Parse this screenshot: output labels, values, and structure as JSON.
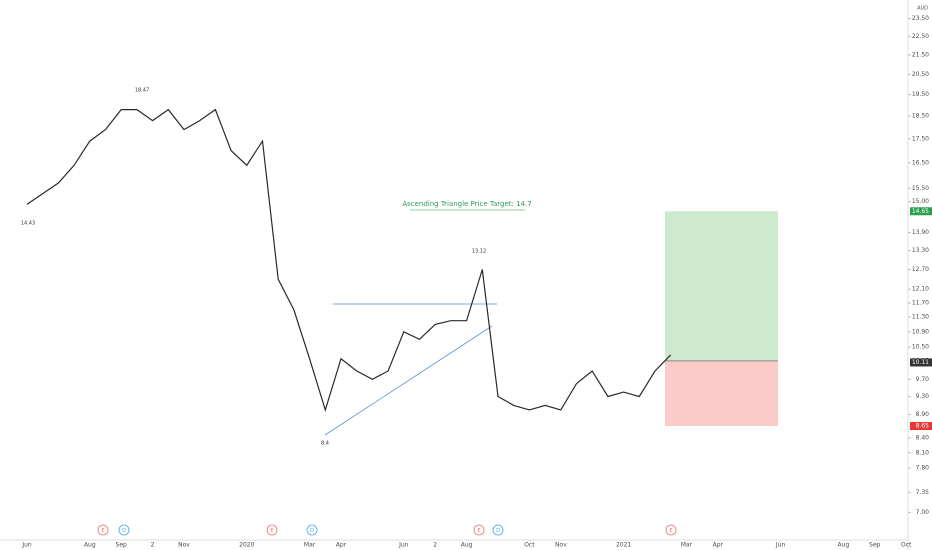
{
  "chart_data": {
    "type": "line",
    "currency": "AUD",
    "log_scale": true,
    "series": [
      {
        "name": "Price",
        "color": "#2a2a2a",
        "values": [
          14.9,
          15.3,
          15.7,
          16.4,
          17.4,
          17.9,
          18.8,
          18.8,
          18.3,
          18.8,
          17.9,
          18.3,
          18.8,
          17.0,
          16.4,
          17.4,
          12.4,
          11.5,
          10.2,
          9.0,
          10.2,
          9.9,
          9.7,
          9.9,
          10.9,
          10.7,
          11.1,
          11.2,
          11.2,
          12.7,
          9.3,
          9.1,
          9.0,
          9.1,
          9.0,
          9.6,
          9.9,
          9.3,
          9.4,
          9.3,
          9.9,
          10.3,
          null,
          null,
          null,
          null,
          null,
          null,
          null,
          null,
          null,
          null,
          null,
          null,
          null,
          null,
          null
        ]
      }
    ],
    "categories": [
      "Jun",
      null,
      null,
      null,
      "Aug",
      null,
      "Sep",
      null,
      "2",
      null,
      "Nov",
      null,
      null,
      null,
      "2020",
      null,
      null,
      null,
      "Mar",
      null,
      "Apr",
      null,
      null,
      null,
      "Jun",
      null,
      "2",
      null,
      "Aug",
      null,
      null,
      null,
      "Oct",
      null,
      "Nov",
      null,
      null,
      null,
      "2021",
      null,
      null,
      null,
      "Mar",
      null,
      "Apr",
      null,
      null,
      null,
      "Jun",
      null,
      null,
      null,
      "Aug",
      null,
      "Sep",
      null,
      "Oct"
    ],
    "ylim": [
      6.54,
      24.6
    ],
    "yticks": [
      {
        "value": 23.5,
        "label": "23.50"
      },
      {
        "value": 22.5,
        "label": "22.50"
      },
      {
        "value": 21.5,
        "label": "21.50"
      },
      {
        "value": 20.5,
        "label": "20.50"
      },
      {
        "value": 19.5,
        "label": "19.50"
      },
      {
        "value": 18.5,
        "label": "18.50"
      },
      {
        "value": 17.5,
        "label": "17.50"
      },
      {
        "value": 16.5,
        "label": "16.50"
      },
      {
        "value": 15.5,
        "label": "15.50"
      },
      {
        "value": 15,
        "label": "15.00"
      },
      {
        "value": 13.9,
        "label": "13.90"
      },
      {
        "value": 13.3,
        "label": "13.30"
      },
      {
        "value": 12.7,
        "label": "12.70"
      },
      {
        "value": 12.1,
        "label": "12.10"
      },
      {
        "value": 11.7,
        "label": "11.70"
      },
      {
        "value": 11.3,
        "label": "11.30"
      },
      {
        "value": 10.9,
        "label": "10.90"
      },
      {
        "value": 10.5,
        "label": "10.50"
      },
      {
        "value": 9.7,
        "label": "9.70"
      },
      {
        "value": 9.3,
        "label": "9.30"
      },
      {
        "value": 8.9,
        "label": "8.90"
      },
      {
        "value": 8.4,
        "label": "8.40"
      },
      {
        "value": 8.1,
        "label": "8.10"
      },
      {
        "value": 7.8,
        "label": "7.80"
      },
      {
        "value": 7.35,
        "label": "7.35"
      },
      {
        "value": 7,
        "label": "7.00"
      }
    ],
    "position": {
      "target": 14.65,
      "entry": 10.15,
      "stop": 8.65
    },
    "last_price": 10.11,
    "annotation": "Ascending Triangle Price Target: 14.7",
    "point_labels": [
      18.47,
      14.43,
      13.12,
      8.4
    ],
    "events": [
      "E",
      "D",
      "E",
      "D",
      "E",
      "D",
      "E"
    ]
  }
}
